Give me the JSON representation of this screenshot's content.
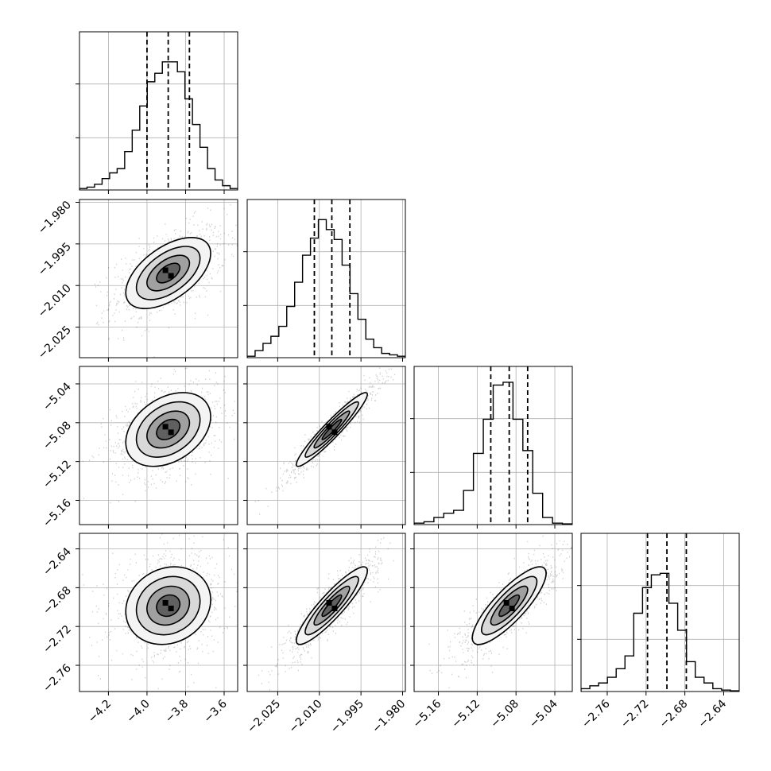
{
  "chart_data": {
    "type": "corner",
    "parameters": [
      {
        "index": 0,
        "ticks": [
          -4.2,
          -4.0,
          -3.8,
          -3.6
        ],
        "tick_labels": [
          "−4.2",
          "−4.0",
          "−3.8",
          "−3.6"
        ],
        "range": [
          -4.35,
          -3.53
        ],
        "median": -3.89,
        "q16": -4.0,
        "q84": -3.78
      },
      {
        "index": 1,
        "ticks": [
          -2.025,
          -2.01,
          -1.995,
          -1.98
        ],
        "tick_labels": [
          "−2.025",
          "−2.010",
          "−1.995",
          "−1.980"
        ],
        "range": [
          -2.036,
          -1.979
        ],
        "median": -2.0055,
        "q16": -2.0118,
        "q84": -1.999
      },
      {
        "index": 2,
        "ticks": [
          -5.16,
          -5.12,
          -5.08,
          -5.04
        ],
        "tick_labels": [
          "−5.16",
          "−5.12",
          "−5.08",
          "−5.04"
        ],
        "range": [
          -5.185,
          -5.022
        ],
        "median": -5.087,
        "q16": -5.106,
        "q84": -5.068
      },
      {
        "index": 3,
        "ticks": [
          -2.76,
          -2.72,
          -2.68,
          -2.64
        ],
        "tick_labels": [
          "−2.76",
          "−2.72",
          "−2.68",
          "−2.64"
        ],
        "range": [
          -2.787,
          -2.624
        ],
        "median": -2.6985,
        "q16": -2.7185,
        "q84": -2.6785
      }
    ],
    "histograms": [
      [
        0.01,
        0.02,
        0.04,
        0.08,
        0.12,
        0.15,
        0.27,
        0.42,
        0.59,
        0.76,
        0.82,
        0.9,
        0.9,
        0.83,
        0.64,
        0.46,
        0.3,
        0.15,
        0.07,
        0.03,
        0.01
      ],
      [
        0.01,
        0.05,
        0.1,
        0.15,
        0.22,
        0.36,
        0.53,
        0.72,
        0.84,
        0.97,
        0.9,
        0.83,
        0.65,
        0.45,
        0.27,
        0.13,
        0.07,
        0.03,
        0.02,
        0.01
      ],
      [
        0.01,
        0.02,
        0.05,
        0.08,
        0.1,
        0.24,
        0.5,
        0.74,
        0.98,
        1.0,
        0.74,
        0.52,
        0.22,
        0.05,
        0.01,
        0.005
      ],
      [
        0.02,
        0.04,
        0.06,
        0.1,
        0.16,
        0.25,
        0.55,
        0.73,
        0.82,
        0.83,
        0.62,
        0.43,
        0.21,
        0.1,
        0.06,
        0.02,
        0.01,
        0.005
      ]
    ],
    "correlations": {
      "1,0": 0.55,
      "2,0": 0.35,
      "2,1": 0.95,
      "3,0": 0.15,
      "3,1": 0.9,
      "3,2": 0.83
    },
    "quantile_lines": [
      0.16,
      0.5,
      0.84
    ],
    "grid": true
  }
}
